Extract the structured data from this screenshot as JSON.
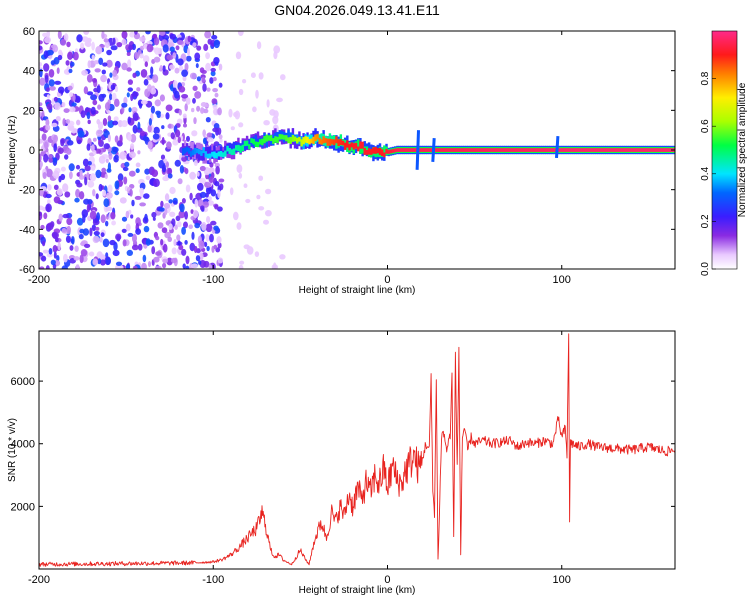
{
  "title": "GN04.2026.049.13.41.E11",
  "colors": {
    "snr_line": "#e8231f",
    "frame": "#000000",
    "background": "#ffffff"
  },
  "colorbar": {
    "label": "Normalized spectral amplitude",
    "range": [
      0,
      1
    ],
    "ticks": [
      "0.0",
      "0.2",
      "0.4",
      "0.6",
      "0.8"
    ],
    "tick_values": [
      0,
      0.2,
      0.4,
      0.6,
      0.8
    ],
    "colormap": "rainbow: white-violet-purple-blue-cyan-green-yellow-orange-red-magenta"
  },
  "chart_data": [
    {
      "type": "heatmap",
      "title": "GN04.2026.049.13.41.E11",
      "xlabel": "Height of straight line (km)",
      "ylabel": "Frequency (Hz)",
      "xlim": [
        -200,
        165
      ],
      "ylim": [
        -60,
        60
      ],
      "x_ticks": [
        "-200",
        "-100",
        "0",
        "100"
      ],
      "x_tick_values": [
        -200,
        -100,
        0,
        100
      ],
      "y_ticks": [
        "60",
        "40",
        "20",
        "0",
        "-20",
        "-40",
        "-60"
      ],
      "y_tick_values": [
        60,
        40,
        20,
        0,
        -20,
        -40,
        -60
      ],
      "noise_region": {
        "x_range": [
          -200,
          -95
        ],
        "sparse_until": -60,
        "amplitude": [
          0.05,
          0.3
        ]
      },
      "ridge": [
        {
          "x": -118,
          "y": 0,
          "amp": 0.3
        },
        {
          "x": -110,
          "y": -1,
          "amp": 0.35
        },
        {
          "x": -100,
          "y": -2,
          "amp": 0.4
        },
        {
          "x": -90,
          "y": 0,
          "amp": 0.45
        },
        {
          "x": -80,
          "y": 3,
          "amp": 0.5
        },
        {
          "x": -70,
          "y": 5,
          "amp": 0.55
        },
        {
          "x": -60,
          "y": 7,
          "amp": 0.55
        },
        {
          "x": -50,
          "y": 4,
          "amp": 0.65
        },
        {
          "x": -42,
          "y": 6,
          "amp": 0.8
        },
        {
          "x": -35,
          "y": 5,
          "amp": 0.85
        },
        {
          "x": -25,
          "y": 3,
          "amp": 0.9
        },
        {
          "x": -15,
          "y": 1,
          "amp": 0.92
        },
        {
          "x": -5,
          "y": -2,
          "amp": 0.9
        },
        {
          "x": 5,
          "y": 0,
          "amp": 0.95
        },
        {
          "x": 20,
          "y": 0,
          "amp": 0.95
        },
        {
          "x": 40,
          "y": 0,
          "amp": 0.95
        },
        {
          "x": 60,
          "y": 0,
          "amp": 0.96
        },
        {
          "x": 80,
          "y": 0,
          "amp": 0.96
        },
        {
          "x": 100,
          "y": 0,
          "amp": 0.97
        },
        {
          "x": 130,
          "y": 0,
          "amp": 0.97
        },
        {
          "x": 165,
          "y": 0,
          "amp": 0.97
        }
      ],
      "spikes": [
        {
          "x": 17,
          "y_range": [
            -10,
            10
          ]
        },
        {
          "x": 26,
          "y_range": [
            -6,
            6
          ]
        },
        {
          "x": 97,
          "y_range": [
            -4,
            7
          ]
        }
      ]
    },
    {
      "type": "line",
      "xlabel": "Height of straight line (km)",
      "ylabel": "SNR (10 * v/v)",
      "xlim": [
        -200,
        165
      ],
      "ylim": [
        0,
        7600
      ],
      "x_ticks": [
        "-200",
        "-100",
        "0",
        "100"
      ],
      "x_tick_values": [
        -200,
        -100,
        0,
        100
      ],
      "y_ticks": [
        "2000",
        "4000",
        "6000"
      ],
      "y_tick_values": [
        2000,
        4000,
        6000
      ],
      "series": [
        {
          "color": "#e8231f",
          "x": [
            -200,
            -180,
            -160,
            -140,
            -120,
            -110,
            -100,
            -95,
            -90,
            -85,
            -80,
            -75,
            -72,
            -70,
            -67,
            -65,
            -62,
            -60,
            -57,
            -55,
            -50,
            -47,
            -45,
            -42,
            -40,
            -38,
            -35,
            -32,
            -30,
            -27,
            -25,
            -22,
            -20,
            -17,
            -15,
            -12,
            -10,
            -7,
            -5,
            -2,
            0,
            3,
            5,
            8,
            10,
            13,
            15,
            18,
            20,
            22,
            24,
            25,
            26,
            27,
            28,
            29,
            30,
            31,
            32,
            34,
            36,
            37,
            38,
            39,
            40,
            41,
            42,
            43,
            44,
            46,
            48,
            50,
            55,
            60,
            65,
            70,
            75,
            80,
            85,
            90,
            95,
            98,
            100,
            102,
            103,
            104,
            104.5,
            105,
            106,
            108,
            110,
            115,
            120,
            130,
            140,
            150,
            160,
            165
          ],
          "y": [
            150,
            160,
            170,
            180,
            190,
            200,
            230,
            300,
            450,
            700,
            1000,
            1300,
            1800,
            1400,
            600,
            400,
            450,
            300,
            200,
            150,
            600,
            300,
            150,
            900,
            1200,
            1500,
            1000,
            1800,
            1500,
            2000,
            1700,
            2400,
            2000,
            2600,
            2200,
            2800,
            2400,
            3000,
            2700,
            3200,
            2600,
            3300,
            2900,
            2700,
            3100,
            3400,
            3600,
            3200,
            3500,
            4000,
            3800,
            6200,
            2500,
            1800,
            6000,
            300,
            2200,
            4200,
            4400,
            3800,
            4300,
            6200,
            1000,
            6900,
            3200,
            7100,
            500,
            4200,
            4500,
            3800,
            4200,
            4000,
            4100,
            4000,
            4050,
            4100,
            3900,
            4050,
            4000,
            4100,
            4000,
            4800,
            4200,
            4500,
            3600,
            7600,
            1500,
            4100,
            4000,
            3950,
            3900,
            4000,
            3900,
            3850,
            3800,
            3900,
            3750,
            3800
          ]
        }
      ]
    }
  ]
}
